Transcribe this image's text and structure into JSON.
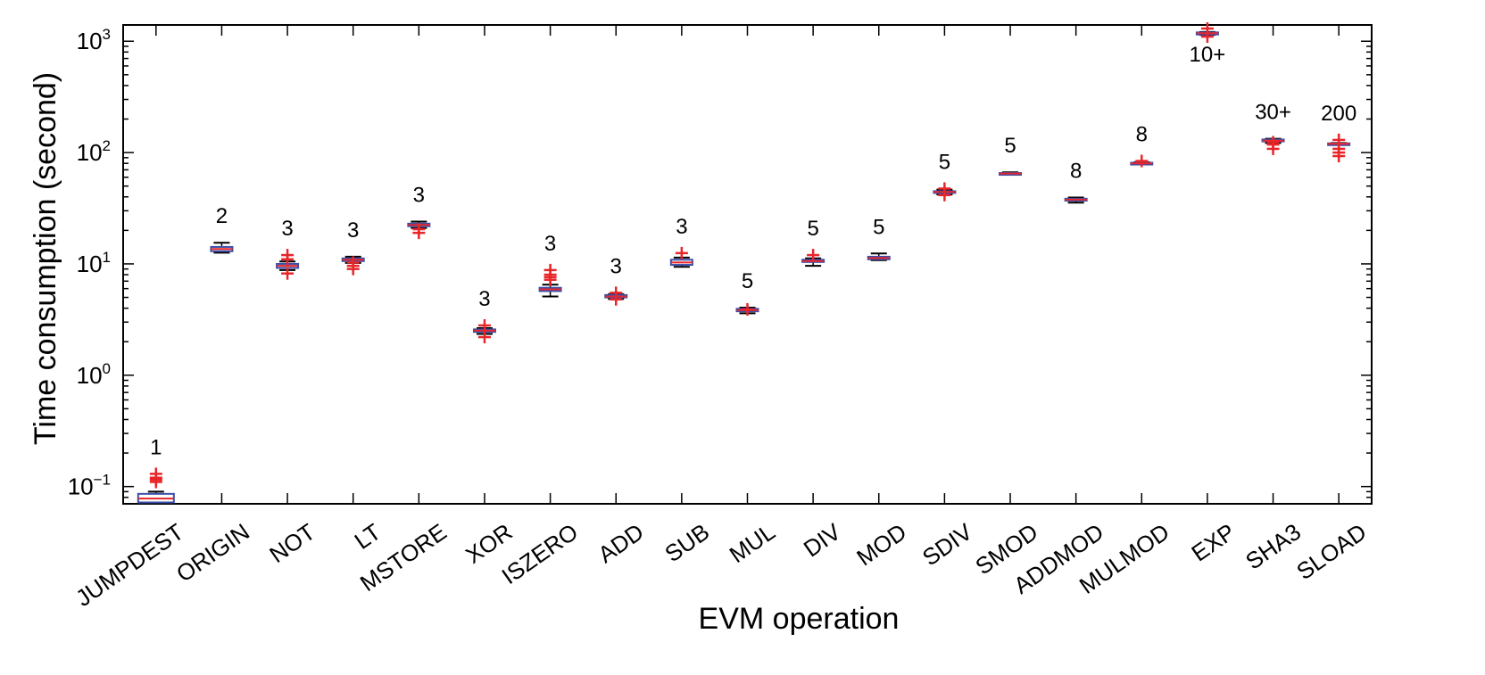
{
  "chart_data": {
    "type": "box",
    "xlabel": "EVM operation",
    "ylabel": "Time consumption (second)",
    "yscale": "log",
    "ylim": [
      0.07,
      1400
    ],
    "yticks": [
      {
        "base": "10",
        "exp": "−1",
        "value": 0.1
      },
      {
        "base": "10",
        "exp": "0",
        "value": 1
      },
      {
        "base": "10",
        "exp": "1",
        "value": 10
      },
      {
        "base": "10",
        "exp": "2",
        "value": 100
      },
      {
        "base": "10",
        "exp": "3",
        "value": 1000
      }
    ],
    "grid": false,
    "categories": [
      "JUMPDEST",
      "ORIGIN",
      "NOT",
      "LT",
      "MSTORE",
      "XOR",
      "ISZERO",
      "ADD",
      "SUB",
      "MUL",
      "DIV",
      "MOD",
      "SDIV",
      "SMOD",
      "ADDMOD",
      "MULMOD",
      "EXP",
      "SHA3",
      "SLOAD"
    ],
    "annotations": [
      "1",
      "2",
      "3",
      "3",
      "3",
      "3",
      "3",
      "3",
      "3",
      "5",
      "5",
      "5",
      "5",
      "5",
      "8",
      "8",
      "10+",
      "30+",
      "200"
    ],
    "boxes": [
      {
        "q1": 0.072,
        "median": 0.078,
        "q3": 0.086,
        "wlow": 0.07,
        "whigh": 0.09,
        "outliers": [
          0.11,
          0.115,
          0.12,
          0.13
        ]
      },
      {
        "q1": 13.0,
        "median": 13.6,
        "q3": 14.2,
        "wlow": 12.6,
        "whigh": 15.5,
        "outliers": []
      },
      {
        "q1": 9.2,
        "median": 9.6,
        "q3": 10.0,
        "wlow": 8.8,
        "whigh": 10.5,
        "outliers": [
          8.2,
          11.0,
          12.0
        ]
      },
      {
        "q1": 10.6,
        "median": 10.9,
        "q3": 11.2,
        "wlow": 10.2,
        "whigh": 11.6,
        "outliers": [
          9.0,
          9.6,
          10.3
        ]
      },
      {
        "q1": 21.8,
        "median": 22.4,
        "q3": 23.0,
        "wlow": 21.0,
        "whigh": 24.0,
        "outliers": [
          19.0,
          20.5
        ]
      },
      {
        "q1": 2.45,
        "median": 2.52,
        "q3": 2.58,
        "wlow": 2.35,
        "whigh": 2.65,
        "outliers": [
          2.2,
          2.8
        ]
      },
      {
        "q1": 5.7,
        "median": 5.9,
        "q3": 6.1,
        "wlow": 5.1,
        "whigh": 6.5,
        "outliers": [
          7.2,
          7.6,
          8.0,
          8.8
        ]
      },
      {
        "q1": 5.0,
        "median": 5.1,
        "q3": 5.25,
        "wlow": 4.85,
        "whigh": 5.35,
        "outliers": [
          4.8,
          5.5
        ]
      },
      {
        "q1": 9.8,
        "median": 10.3,
        "q3": 10.9,
        "wlow": 9.4,
        "whigh": 11.4,
        "outliers": [
          12.5
        ]
      },
      {
        "q1": 3.75,
        "median": 3.85,
        "q3": 3.95,
        "wlow": 3.6,
        "whigh": 4.05,
        "outliers": [
          3.9
        ]
      },
      {
        "q1": 10.4,
        "median": 10.6,
        "q3": 10.9,
        "wlow": 9.6,
        "whigh": 11.2,
        "outliers": [
          12.0
        ]
      },
      {
        "q1": 11.0,
        "median": 11.3,
        "q3": 11.6,
        "wlow": 10.8,
        "whigh": 12.4,
        "outliers": []
      },
      {
        "q1": 43.5,
        "median": 44.3,
        "q3": 45.0,
        "wlow": 42.0,
        "whigh": 46.5,
        "outliers": [
          47.5,
          41.5
        ]
      },
      {
        "q1": 64.0,
        "median": 64.8,
        "q3": 65.5,
        "wlow": 63.5,
        "whigh": 66.5,
        "outliers": []
      },
      {
        "q1": 37.0,
        "median": 37.8,
        "q3": 38.5,
        "wlow": 35.5,
        "whigh": 39.5,
        "outliers": []
      },
      {
        "q1": 79.0,
        "median": 80.0,
        "q3": 81.0,
        "wlow": 78.5,
        "whigh": 82.0,
        "outliers": [
          84.0
        ]
      },
      {
        "q1": 1150,
        "median": 1180,
        "q3": 1200,
        "wlow": 1140,
        "whigh": 1210,
        "outliers": [
          1100,
          1300
        ]
      },
      {
        "q1": 126,
        "median": 128,
        "q3": 131,
        "wlow": 122,
        "whigh": 133,
        "outliers": [
          108,
          118,
          124
        ]
      },
      {
        "q1": 119,
        "median": 120,
        "q3": 121,
        "wlow": 118,
        "whigh": 122,
        "outliers": [
          93,
          100,
          108,
          130
        ]
      }
    ]
  }
}
